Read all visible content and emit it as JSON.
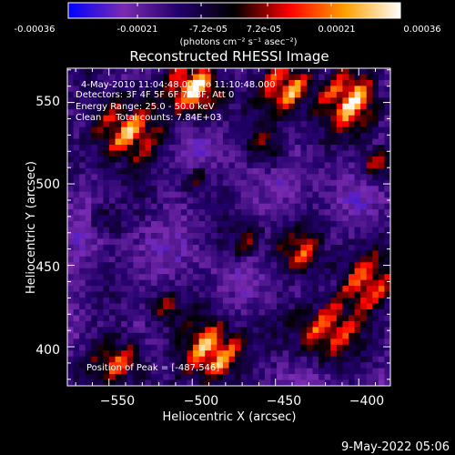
{
  "colorbar": {
    "ticks": [
      "-0.00036",
      "-0.00021",
      "-7.2e-05",
      "7.2e-05",
      "0.00021",
      "0.00036"
    ],
    "tick_values": [
      -0.00036,
      -0.00021,
      -7.2e-05,
      7.2e-05,
      0.00021,
      0.00036
    ],
    "range": [
      -0.00036,
      0.00036
    ],
    "colors": [
      "#0000ff",
      "#7a2bb0",
      "#22006a",
      "#000000",
      "#ff0000",
      "#ffa000",
      "#ffffff"
    ]
  },
  "units_label": "(photons cm⁻² s⁻¹ asec⁻²)",
  "chart_data": {
    "type": "heatmap",
    "title": "Reconstructed RHESSI Image",
    "xlabel": "Heliocentric X (arcsec)",
    "ylabel": "Heliocentric Y (arcsec)",
    "xlim": [
      -575,
      -381
    ],
    "ylim": [
      376,
      571
    ],
    "x_ticks": [
      -550,
      -500,
      -450,
      -400
    ],
    "x_tick_labels": [
      "−550",
      "−500",
      "−450",
      "−400"
    ],
    "y_ticks": [
      400,
      450,
      500,
      550
    ],
    "y_tick_labels": [
      "400",
      "450",
      "500",
      "550"
    ],
    "peak": [
      -487,
      546
    ],
    "annotations": [
      "4-May-2010 11:04:48.000 to 11:10:48.000",
      "Detectors: 3F 4F 5F 6F 7F 8F, Att 0",
      "Energy Range: 25.0 - 50.0 keV",
      "Clean     Total counts: 7.84E+03",
      "Position of Peak = [-487,546]"
    ]
  },
  "timestamp": "9-May-2022 05:06"
}
